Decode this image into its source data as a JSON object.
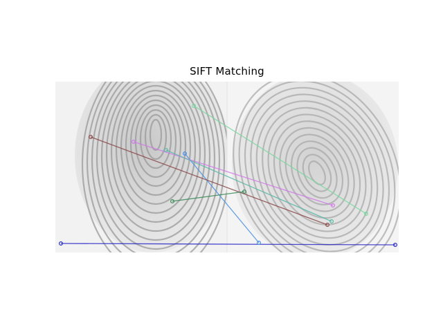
{
  "figure": {
    "title": "SIFT Matching"
  },
  "image_panel": {
    "left_image": "fingerprint",
    "right_image": "fingerprint"
  },
  "matches": [
    {
      "color": "#2a2ac8"
    },
    {
      "color": "#4a90e2"
    },
    {
      "color": "#8b4a4a"
    },
    {
      "color": "#d07ae8"
    },
    {
      "color": "#5ab8a8"
    },
    {
      "color": "#3d8b5a"
    },
    {
      "color": "#7ad8a0"
    }
  ]
}
